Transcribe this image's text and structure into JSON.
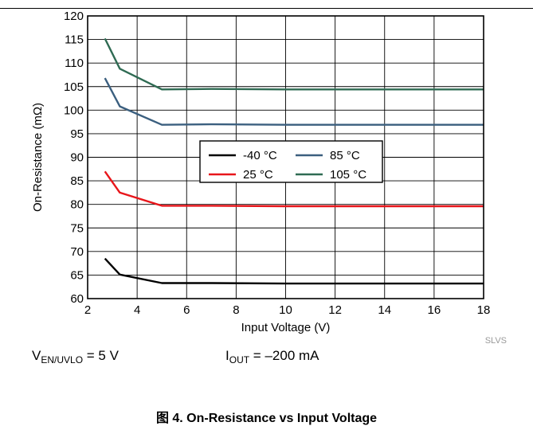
{
  "chart_data": {
    "type": "line",
    "xlabel": "Input Voltage (V)",
    "ylabel": "On-Resistance (mΩ)",
    "xlim": [
      2,
      18
    ],
    "ylim": [
      60,
      120
    ],
    "x_ticks": [
      "2",
      "4",
      "6",
      "8",
      "10",
      "12",
      "14",
      "16",
      "18"
    ],
    "y_ticks": [
      "60",
      "65",
      "70",
      "75",
      "80",
      "85",
      "90",
      "95",
      "100",
      "105",
      "110",
      "115",
      "120"
    ],
    "grid": true,
    "legend_position": "center",
    "series": [
      {
        "name": "-40 °C",
        "color": "#000000",
        "x": [
          2.7,
          3.3,
          5,
          7,
          10,
          14,
          18
        ],
        "y": [
          68.5,
          65.1,
          63.3,
          63.3,
          63.2,
          63.2,
          63.2
        ]
      },
      {
        "name": "25 °C",
        "color": "#e8161b",
        "x": [
          2.7,
          3.3,
          5,
          7,
          10,
          14,
          18
        ],
        "y": [
          87.0,
          82.5,
          79.7,
          79.7,
          79.6,
          79.6,
          79.6
        ]
      },
      {
        "name": "85 °C",
        "color": "#3b5f7f",
        "x": [
          2.7,
          3.3,
          5,
          7,
          10,
          14,
          18
        ],
        "y": [
          106.8,
          100.8,
          96.9,
          97.0,
          96.9,
          96.9,
          96.9
        ]
      },
      {
        "name": "105 °C",
        "color": "#2f6b53",
        "x": [
          2.7,
          3.3,
          5,
          7,
          10,
          14,
          18
        ],
        "y": [
          115.2,
          108.8,
          104.4,
          104.5,
          104.4,
          104.4,
          104.4
        ]
      }
    ]
  },
  "watermark": "SLVS",
  "conditions": {
    "en_prefix": "V",
    "en_sub": "EN/UVLO",
    "en_value": " = 5 V",
    "iout_prefix": "I",
    "iout_sub": "OUT",
    "iout_value": " = –200 mA"
  },
  "caption": "图 4. On-Resistance vs Input Voltage"
}
